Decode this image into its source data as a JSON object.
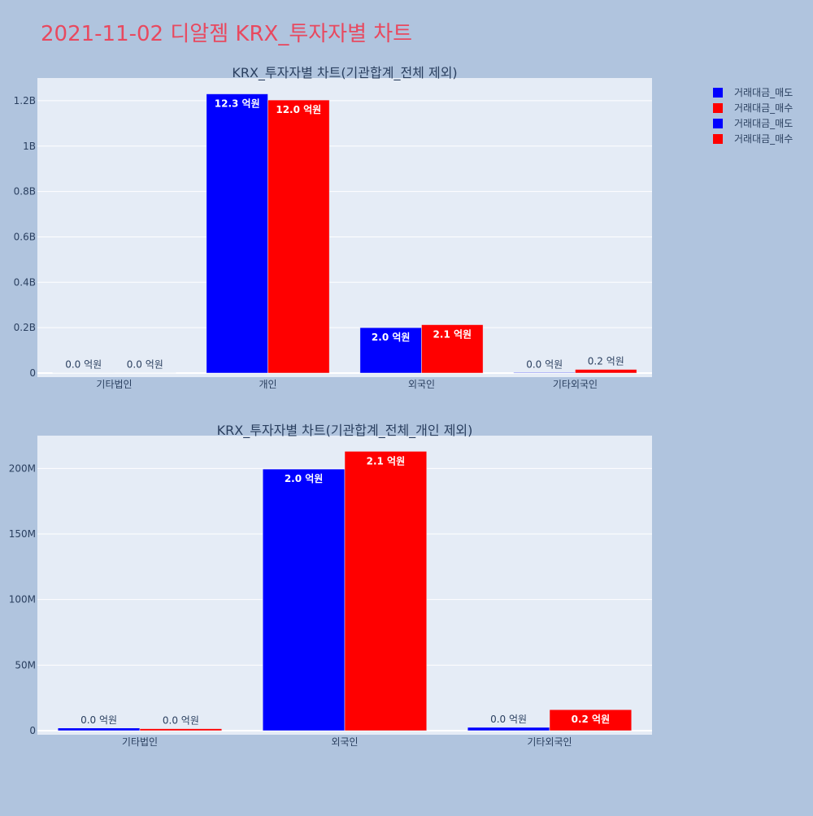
{
  "page": {
    "title": "2021-11-02 디알젬 KRX_투자자별 차트",
    "title_color": "#e8495f",
    "background": "#b0c4de",
    "plot_background": "#e5ecf6"
  },
  "legend": {
    "placement": "top-right",
    "items": [
      {
        "label": "거래대금_매도",
        "color": "#0000ff"
      },
      {
        "label": "거래대금_매수",
        "color": "#ff0000"
      },
      {
        "label": "거래대금_매도",
        "color": "#0000ff"
      },
      {
        "label": "거래대금_매수",
        "color": "#ff0000"
      }
    ]
  },
  "chart_data": [
    {
      "type": "bar",
      "title": "KRX_투자자별 차트(기관합계_전체 제외)",
      "categories": [
        "기타법인",
        "개인",
        "외국인",
        "기타외국인"
      ],
      "series": [
        {
          "name": "거래대금_매도",
          "color": "#0000ff",
          "values": [
            1500000,
            1230000000,
            200000000,
            2500000
          ],
          "labels": [
            "0.0 억원",
            "12.3 억원",
            "2.0 억원",
            "0.0 억원"
          ]
        },
        {
          "name": "거래대금_매수",
          "color": "#ff0000",
          "values": [
            1000000,
            1203000000,
            213000000,
            16000000
          ],
          "labels": [
            "0.0 억원",
            "12.0 억원",
            "2.1 억원",
            "0.2 억원"
          ]
        }
      ],
      "ylim": [
        0,
        1300000000
      ],
      "yticks": [
        0,
        200000000,
        400000000,
        600000000,
        800000000,
        1000000000,
        1200000000
      ],
      "ytick_labels": [
        "0",
        "0.2B",
        "0.4B",
        "0.6B",
        "0.8B",
        "1B",
        "1.2B"
      ],
      "grid": true
    },
    {
      "type": "bar",
      "title": "KRX_투자자별 차트(기관합계_전체_개인 제외)",
      "categories": [
        "기타법인",
        "외국인",
        "기타외국인"
      ],
      "series": [
        {
          "name": "거래대금_매도",
          "color": "#0000ff",
          "values": [
            2000000,
            199500000,
            2500000
          ],
          "labels": [
            "0.0 억원",
            "2.0 억원",
            "0.0 억원"
          ]
        },
        {
          "name": "거래대금_매수",
          "color": "#ff0000",
          "values": [
            1500000,
            213000000,
            16000000
          ],
          "labels": [
            "0.0 억원",
            "2.1 억원",
            "0.2 억원"
          ]
        }
      ],
      "ylim": [
        0,
        225000000
      ],
      "yticks": [
        0,
        50000000,
        100000000,
        150000000,
        200000000
      ],
      "ytick_labels": [
        "0",
        "50M",
        "100M",
        "150M",
        "200M"
      ],
      "grid": true
    }
  ]
}
